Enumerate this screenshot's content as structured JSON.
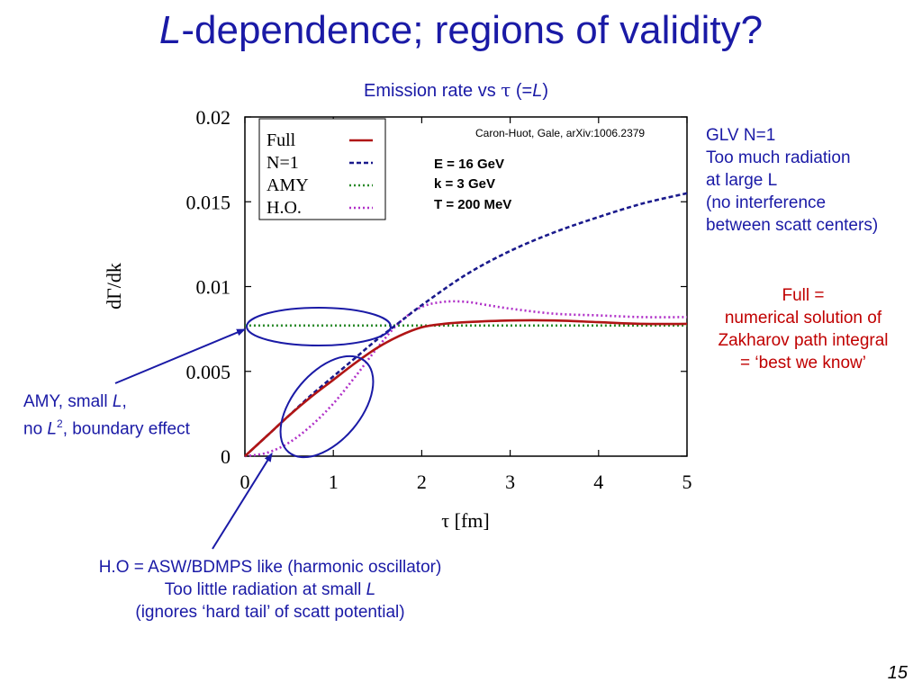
{
  "slide": {
    "title_italic": "L",
    "title_rest": "-dependence; regions of validity?",
    "subtitle": {
      "prefix": "Emission rate vs ",
      "tau": "τ",
      "mid": " (=",
      "L": "L",
      "suffix": ")"
    },
    "glv_note": {
      "l1": "GLV N=1",
      "l2": "Too much radiation",
      "l3": "at large L",
      "l4": "(no interference",
      "l5": "between scatt centers)"
    },
    "full_note": {
      "l1": "Full =",
      "l2": "numerical solution of",
      "l3": "Zakharov path integral",
      "l4": "= ‘best we know’"
    },
    "amy_note": {
      "l1a": "AMY, small ",
      "l1b": "L",
      "l1c": ",",
      "l2a": "no ",
      "l2b": "L",
      "l2c": "2",
      "l2d": ", boundary effect"
    },
    "ho_note": {
      "l1": "H.O = ASW/BDMPS like (harmonic oscillator)",
      "l2a": "Too little radiation at small ",
      "l2b": "L",
      "l3": "(ignores ‘hard tail’ of scatt potential)"
    },
    "page_number": "15",
    "colors": {
      "title": "#1a1aa6",
      "full_note": "#c00000",
      "annotation": "#1a1aa6"
    }
  },
  "chart_data": {
    "type": "line",
    "xlabel": "τ [fm]",
    "ylabel": "dΓ/dk",
    "xlim": [
      0,
      5
    ],
    "ylim": [
      0,
      0.02
    ],
    "xticks": [
      "0",
      "1",
      "2",
      "3",
      "4",
      "5"
    ],
    "yticks": [
      "0",
      "0.005",
      "0.01",
      "0.015",
      "0.02"
    ],
    "citation": "Caron-Huot, Gale, arXiv:1006.2379",
    "parameters": [
      "E = 16 GeV",
      "k = 3 GeV",
      "T = 200 MeV"
    ],
    "legend_position": "top-left",
    "series": [
      {
        "name": "Full",
        "color": "#b01515",
        "style": "solid",
        "x": [
          0,
          0.25,
          0.5,
          0.75,
          1.0,
          1.25,
          1.5,
          1.75,
          2.0,
          2.25,
          2.5,
          3.0,
          3.5,
          4.0,
          4.5,
          5.0
        ],
        "y": [
          0,
          0.0012,
          0.0024,
          0.0035,
          0.0045,
          0.0055,
          0.0064,
          0.0071,
          0.0076,
          0.0078,
          0.0079,
          0.008,
          0.008,
          0.0079,
          0.0078,
          0.0078
        ]
      },
      {
        "name": "N=1",
        "color": "#1a1a8c",
        "style": "dashed",
        "x": [
          0,
          0.25,
          0.5,
          0.75,
          1.0,
          1.25,
          1.5,
          1.75,
          2.0,
          2.5,
          3.0,
          3.5,
          4.0,
          4.5,
          5.0
        ],
        "y": [
          0,
          0.0012,
          0.0024,
          0.0036,
          0.0047,
          0.0058,
          0.0069,
          0.0079,
          0.0089,
          0.0107,
          0.0121,
          0.0132,
          0.0141,
          0.0149,
          0.0155
        ]
      },
      {
        "name": "AMY",
        "color": "#2a8a2a",
        "style": "dotted",
        "x": [
          0,
          1.0,
          2.0,
          3.0,
          4.0,
          5.0
        ],
        "y": [
          0.0077,
          0.0077,
          0.0077,
          0.0077,
          0.0077,
          0.0077
        ]
      },
      {
        "name": "H.O.",
        "color": "#b030c8",
        "style": "dotted",
        "x": [
          0,
          0.25,
          0.5,
          0.75,
          1.0,
          1.25,
          1.5,
          1.75,
          2.0,
          2.25,
          2.5,
          2.75,
          3.0,
          3.5,
          4.0,
          4.5,
          5.0
        ],
        "y": [
          0,
          0.0002,
          0.0008,
          0.0018,
          0.0031,
          0.0047,
          0.0064,
          0.0079,
          0.0088,
          0.0091,
          0.0091,
          0.0089,
          0.0087,
          0.0084,
          0.0083,
          0.0082,
          0.0082
        ]
      }
    ]
  }
}
